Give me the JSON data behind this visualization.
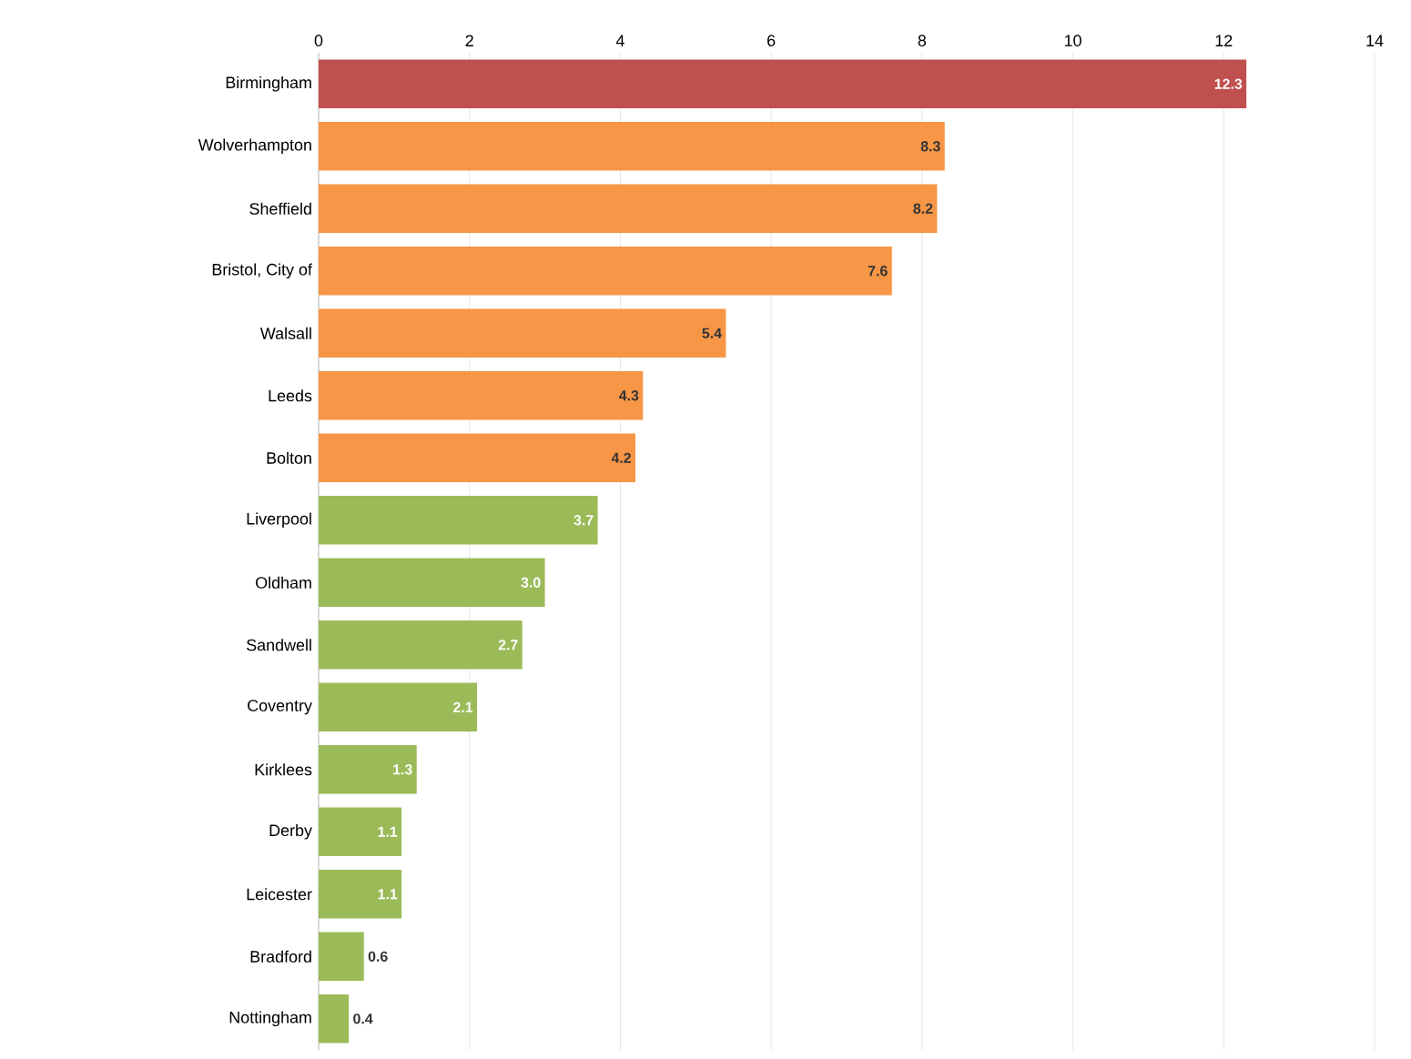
{
  "chart_data": {
    "type": "bar",
    "orientation": "horizontal",
    "categories": [
      "Birmingham",
      "Wolverhampton",
      "Sheffield",
      "Bristol, City of",
      "Walsall",
      "Leeds",
      "Bolton",
      "Liverpool",
      "Oldham",
      "Sandwell",
      "Coventry",
      "Kirklees",
      "Derby",
      "Leicester",
      "Bradford",
      "Nottingham"
    ],
    "values": [
      12.3,
      8.3,
      8.2,
      7.6,
      5.4,
      4.3,
      4.2,
      3.7,
      3.0,
      2.7,
      2.1,
      1.3,
      1.1,
      1.1,
      0.6,
      0.4
    ],
    "colors": [
      "#c0504d",
      "#f79646",
      "#f79646",
      "#f79646",
      "#f79646",
      "#f79646",
      "#f79646",
      "#9bbb59",
      "#9bbb59",
      "#9bbb59",
      "#9bbb59",
      "#9bbb59",
      "#9bbb59",
      "#9bbb59",
      "#9bbb59",
      "#9bbb59"
    ],
    "value_labels": [
      "12.3",
      "8.3",
      "8.2",
      "7.6",
      "5.4",
      "4.3",
      "4.2",
      "3.7",
      "3.0",
      "2.7",
      "2.1",
      "1.3",
      "1.1",
      "1.1",
      "0.6",
      "0.4"
    ],
    "xlim": [
      0,
      14
    ],
    "xticks": [
      0,
      2,
      4,
      6,
      8,
      10,
      12,
      14
    ],
    "grid": "x"
  }
}
